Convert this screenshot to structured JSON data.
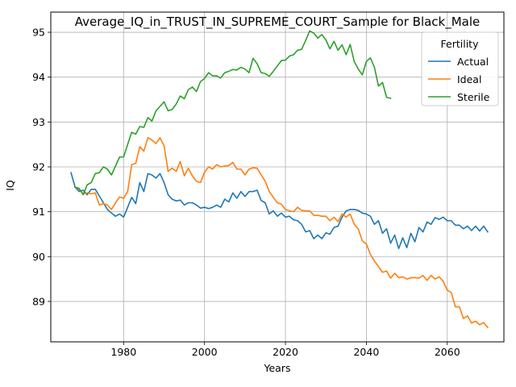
{
  "chart_data": {
    "type": "line",
    "title": "Average_IQ_in_TRUST_IN_SUPREME_COURT_Sample for Black_Male",
    "xlabel": "Years",
    "ylabel": "IQ",
    "xlim": [
      1962,
      2074
    ],
    "ylim": [
      88.1,
      95.45
    ],
    "xticks": [
      1980,
      2000,
      2020,
      2040,
      2060
    ],
    "yticks": [
      89,
      90,
      91,
      92,
      93,
      94,
      95
    ],
    "grid": true,
    "legend": {
      "title": "Fertility",
      "placement": "upper right"
    },
    "series": [
      {
        "name": "Actual",
        "color": "#1f77b4",
        "x": [
          1967,
          1968,
          1969,
          1970,
          1971,
          1972,
          1973,
          1974,
          1975,
          1976,
          1977,
          1978,
          1979,
          1980,
          1981,
          1982,
          1983,
          1984,
          1985,
          1986,
          1987,
          1988,
          1989,
          1990,
          1991,
          1992,
          1993,
          1994,
          1995,
          1996,
          1997,
          1998,
          1999,
          2000,
          2001,
          2002,
          2003,
          2004,
          2005,
          2006,
          2007,
          2008,
          2009,
          2010,
          2011,
          2012,
          2013,
          2014,
          2015,
          2016,
          2017,
          2018,
          2019,
          2020,
          2021,
          2022,
          2023,
          2024,
          2025,
          2026,
          2027,
          2028,
          2029,
          2030,
          2031,
          2032,
          2033,
          2034,
          2035,
          2036,
          2037,
          2038,
          2039,
          2040,
          2041,
          2042,
          2043,
          2044,
          2045,
          2046,
          2047,
          2048,
          2049,
          2050,
          2051,
          2052,
          2053,
          2054,
          2055,
          2056,
          2057,
          2058,
          2059,
          2060,
          2061,
          2062,
          2063,
          2064,
          2065,
          2066,
          2067,
          2068,
          2069,
          2070
        ],
        "values": [
          91.87,
          91.55,
          91.45,
          91.48,
          91.38,
          91.5,
          91.5,
          91.35,
          91.2,
          91.05,
          90.97,
          90.9,
          90.95,
          90.88,
          91.1,
          91.32,
          91.18,
          91.65,
          91.45,
          91.85,
          91.82,
          91.75,
          91.85,
          91.65,
          91.38,
          91.28,
          91.24,
          91.26,
          91.15,
          91.2,
          91.2,
          91.15,
          91.08,
          91.1,
          91.07,
          91.1,
          91.15,
          91.1,
          91.28,
          91.22,
          91.42,
          91.3,
          91.45,
          91.34,
          91.45,
          91.45,
          91.48,
          91.25,
          91.2,
          90.95,
          91.02,
          90.9,
          90.97,
          90.88,
          90.9,
          90.82,
          90.8,
          90.72,
          90.55,
          90.58,
          90.4,
          90.48,
          90.4,
          90.53,
          90.5,
          90.65,
          90.68,
          90.88,
          91.02,
          91.05,
          91.05,
          91.03,
          90.97,
          90.95,
          90.9,
          90.72,
          90.8,
          90.52,
          90.62,
          90.3,
          90.48,
          90.18,
          90.42,
          90.2,
          90.52,
          90.33,
          90.65,
          90.55,
          90.77,
          90.72,
          90.87,
          90.83,
          90.88,
          90.8,
          90.8,
          90.7,
          90.7,
          90.62,
          90.68,
          90.58,
          90.68,
          90.57,
          90.68,
          90.55
        ]
      },
      {
        "name": "Ideal",
        "color": "#ff7f0e",
        "x": [
          1968,
          1969,
          1970,
          1971,
          1972,
          1973,
          1974,
          1975,
          1976,
          1977,
          1978,
          1979,
          1980,
          1981,
          1982,
          1983,
          1984,
          1985,
          1986,
          1987,
          1988,
          1989,
          1990,
          1991,
          1992,
          1993,
          1994,
          1995,
          1996,
          1997,
          1998,
          1999,
          2000,
          2001,
          2002,
          2003,
          2004,
          2005,
          2006,
          2007,
          2008,
          2009,
          2010,
          2011,
          2012,
          2013,
          2014,
          2015,
          2016,
          2017,
          2018,
          2019,
          2020,
          2021,
          2022,
          2023,
          2024,
          2025,
          2026,
          2027,
          2028,
          2029,
          2030,
          2031,
          2032,
          2033,
          2034,
          2035,
          2036,
          2037,
          2038,
          2039,
          2040,
          2041,
          2042,
          2043,
          2044,
          2045,
          2046,
          2047,
          2048,
          2049,
          2050,
          2051,
          2052,
          2053,
          2054,
          2055,
          2056,
          2057,
          2058,
          2059,
          2060,
          2061,
          2062,
          2063,
          2064,
          2065,
          2066,
          2067,
          2068,
          2069,
          2070
        ],
        "values": [
          91.55,
          91.5,
          91.4,
          91.42,
          91.4,
          91.42,
          91.15,
          91.18,
          91.15,
          91.05,
          91.2,
          91.33,
          91.3,
          91.45,
          92.05,
          92.08,
          92.45,
          92.35,
          92.65,
          92.6,
          92.52,
          92.65,
          92.47,
          91.9,
          91.97,
          91.9,
          92.12,
          91.8,
          91.97,
          91.8,
          91.68,
          91.65,
          91.88,
          92.0,
          91.95,
          92.05,
          92.0,
          92.02,
          92.03,
          92.1,
          91.95,
          91.95,
          91.82,
          91.95,
          91.98,
          91.97,
          91.82,
          91.68,
          91.45,
          91.32,
          91.2,
          91.17,
          91.05,
          91.02,
          91.0,
          91.1,
          91.03,
          91.02,
          91.02,
          90.92,
          90.92,
          90.9,
          90.9,
          90.8,
          90.88,
          90.78,
          90.95,
          90.88,
          90.95,
          90.72,
          90.62,
          90.35,
          90.28,
          90.05,
          89.9,
          89.78,
          89.65,
          89.68,
          89.52,
          89.63,
          89.53,
          89.55,
          89.5,
          89.53,
          89.53,
          89.52,
          89.58,
          89.47,
          89.58,
          89.5,
          89.55,
          89.45,
          89.25,
          89.2,
          88.88,
          88.88,
          88.62,
          88.68,
          88.52,
          88.56,
          88.48,
          88.53,
          88.42
        ]
      },
      {
        "name": "Sterile",
        "color": "#2ca02c",
        "x": [
          1968,
          1969,
          1970,
          1971,
          1972,
          1973,
          1974,
          1975,
          1976,
          1977,
          1978,
          1979,
          1980,
          1981,
          1982,
          1983,
          1984,
          1985,
          1986,
          1987,
          1988,
          1989,
          1990,
          1991,
          1992,
          1993,
          1994,
          1995,
          1996,
          1997,
          1998,
          1999,
          2000,
          2001,
          2002,
          2003,
          2004,
          2005,
          2006,
          2007,
          2008,
          2009,
          2010,
          2011,
          2012,
          2013,
          2014,
          2015,
          2016,
          2017,
          2018,
          2019,
          2020,
          2021,
          2022,
          2023,
          2024,
          2025,
          2026,
          2027,
          2028,
          2029,
          2030,
          2031,
          2032,
          2033,
          2034,
          2035,
          2036,
          2037,
          2038,
          2039,
          2040,
          2041,
          2042,
          2043,
          2044,
          2045,
          2046
        ],
        "values": [
          91.55,
          91.52,
          91.38,
          91.6,
          91.65,
          91.85,
          91.87,
          92.0,
          91.95,
          91.82,
          92.02,
          92.22,
          92.22,
          92.5,
          92.77,
          92.73,
          92.9,
          92.88,
          93.1,
          93.02,
          93.25,
          93.35,
          93.45,
          93.25,
          93.28,
          93.4,
          93.58,
          93.52,
          93.72,
          93.78,
          93.68,
          93.9,
          93.97,
          94.1,
          94.03,
          94.03,
          93.98,
          94.1,
          94.13,
          94.17,
          94.16,
          94.22,
          94.18,
          94.1,
          94.42,
          94.3,
          94.1,
          94.08,
          94.02,
          94.13,
          94.25,
          94.37,
          94.38,
          94.47,
          94.5,
          94.6,
          94.62,
          94.82,
          95.03,
          94.98,
          94.87,
          94.95,
          94.83,
          94.63,
          94.8,
          94.6,
          94.72,
          94.5,
          94.73,
          94.35,
          94.18,
          94.05,
          94.35,
          94.43,
          94.22,
          93.8,
          93.88,
          93.55,
          93.53
        ]
      }
    ]
  }
}
